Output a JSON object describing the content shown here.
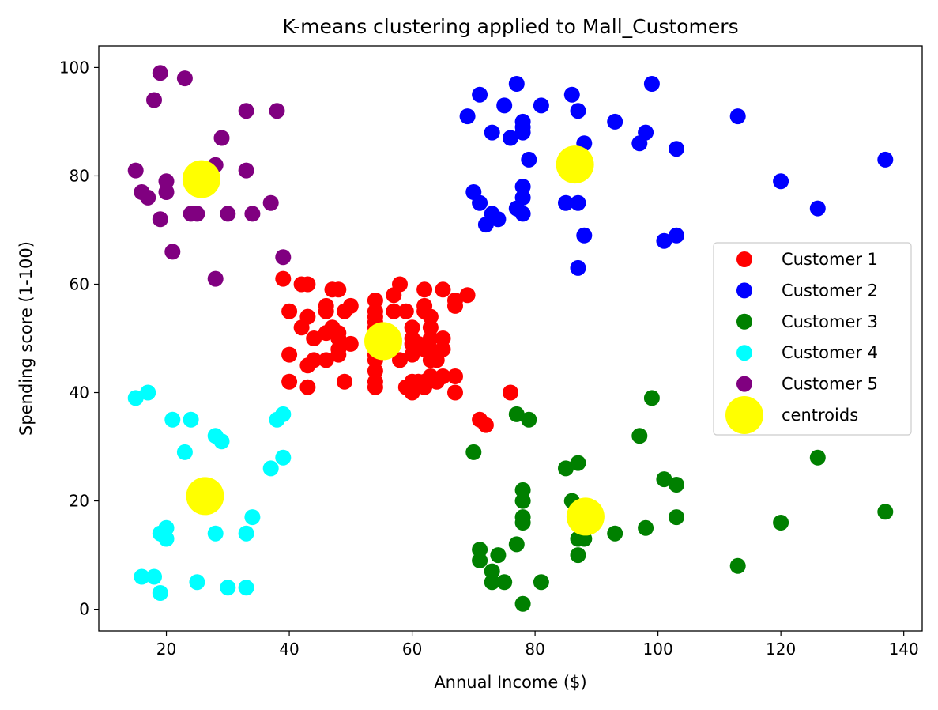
{
  "chart_data": {
    "type": "scatter",
    "title": "K-means clustering applied to Mall_Customers",
    "xlabel": "Annual Income ($)",
    "ylabel": "Spending score (1-100)",
    "xlim": [
      9,
      143
    ],
    "ylim": [
      -4,
      104
    ],
    "xticks": [
      20,
      40,
      60,
      80,
      100,
      120,
      140
    ],
    "yticks": [
      0,
      20,
      40,
      60,
      80,
      100
    ],
    "grid": false,
    "legend_position": "right",
    "series": [
      {
        "name": "Customer 1",
        "color": "#ff0000",
        "points": [
          [
            39,
            61
          ],
          [
            40,
            55
          ],
          [
            40,
            47
          ],
          [
            40,
            42
          ],
          [
            42,
            52
          ],
          [
            42,
            60
          ],
          [
            43,
            60
          ],
          [
            43,
            54
          ],
          [
            43,
            45
          ],
          [
            43,
            41
          ],
          [
            44,
            50
          ],
          [
            44,
            46
          ],
          [
            46,
            51
          ],
          [
            46,
            46
          ],
          [
            46,
            56
          ],
          [
            46,
            55
          ],
          [
            47,
            52
          ],
          [
            47,
            59
          ],
          [
            48,
            51
          ],
          [
            48,
            59
          ],
          [
            48,
            50
          ],
          [
            48,
            48
          ],
          [
            48,
            47
          ],
          [
            49,
            55
          ],
          [
            49,
            42
          ],
          [
            50,
            49
          ],
          [
            50,
            56
          ],
          [
            54,
            47
          ],
          [
            54,
            54
          ],
          [
            54,
            53
          ],
          [
            54,
            48
          ],
          [
            54,
            52
          ],
          [
            54,
            42
          ],
          [
            54,
            51
          ],
          [
            54,
            55
          ],
          [
            54,
            41
          ],
          [
            54,
            44
          ],
          [
            54,
            57
          ],
          [
            54,
            46
          ],
          [
            57,
            58
          ],
          [
            57,
            55
          ],
          [
            58,
            60
          ],
          [
            58,
            46
          ],
          [
            59,
            55
          ],
          [
            59,
            41
          ],
          [
            60,
            49
          ],
          [
            60,
            40
          ],
          [
            60,
            42
          ],
          [
            60,
            52
          ],
          [
            60,
            47
          ],
          [
            60,
            50
          ],
          [
            61,
            42
          ],
          [
            61,
            49
          ],
          [
            62,
            41
          ],
          [
            62,
            48
          ],
          [
            62,
            59
          ],
          [
            62,
            55
          ],
          [
            62,
            56
          ],
          [
            62,
            42
          ],
          [
            63,
            50
          ],
          [
            63,
            46
          ],
          [
            63,
            43
          ],
          [
            63,
            48
          ],
          [
            63,
            52
          ],
          [
            63,
            54
          ],
          [
            64,
            42
          ],
          [
            64,
            46
          ],
          [
            65,
            48
          ],
          [
            65,
            50
          ],
          [
            65,
            43
          ],
          [
            65,
            59
          ],
          [
            67,
            43
          ],
          [
            67,
            57
          ],
          [
            67,
            56
          ],
          [
            67,
            40
          ],
          [
            69,
            58
          ],
          [
            71,
            35
          ],
          [
            72,
            34
          ],
          [
            76,
            40
          ]
        ]
      },
      {
        "name": "Customer 2",
        "color": "#0000ff",
        "points": [
          [
            69,
            91
          ],
          [
            70,
            77
          ],
          [
            71,
            95
          ],
          [
            71,
            75
          ],
          [
            72,
            71
          ],
          [
            73,
            88
          ],
          [
            73,
            73
          ],
          [
            74,
            72
          ],
          [
            75,
            93
          ],
          [
            76,
            87
          ],
          [
            77,
            97
          ],
          [
            77,
            74
          ],
          [
            78,
            90
          ],
          [
            78,
            88
          ],
          [
            78,
            76
          ],
          [
            78,
            89
          ],
          [
            78,
            78
          ],
          [
            78,
            73
          ],
          [
            79,
            83
          ],
          [
            81,
            93
          ],
          [
            85,
            75
          ],
          [
            86,
            95
          ],
          [
            87,
            92
          ],
          [
            87,
            63
          ],
          [
            87,
            75
          ],
          [
            88,
            86
          ],
          [
            88,
            69
          ],
          [
            93,
            90
          ],
          [
            97,
            86
          ],
          [
            98,
            88
          ],
          [
            99,
            97
          ],
          [
            101,
            68
          ],
          [
            103,
            85
          ],
          [
            103,
            69
          ],
          [
            113,
            91
          ],
          [
            120,
            79
          ],
          [
            126,
            74
          ],
          [
            137,
            83
          ]
        ]
      },
      {
        "name": "Customer 3",
        "color": "#008000",
        "points": [
          [
            70,
            29
          ],
          [
            71,
            11
          ],
          [
            71,
            9
          ],
          [
            73,
            5
          ],
          [
            73,
            7
          ],
          [
            74,
            10
          ],
          [
            75,
            5
          ],
          [
            77,
            12
          ],
          [
            77,
            36
          ],
          [
            78,
            22
          ],
          [
            78,
            17
          ],
          [
            78,
            20
          ],
          [
            78,
            16
          ],
          [
            78,
            1
          ],
          [
            79,
            35
          ],
          [
            81,
            5
          ],
          [
            85,
            26
          ],
          [
            86,
            20
          ],
          [
            87,
            27
          ],
          [
            87,
            13
          ],
          [
            87,
            10
          ],
          [
            88,
            13
          ],
          [
            88,
            15
          ],
          [
            93,
            14
          ],
          [
            97,
            32
          ],
          [
            98,
            15
          ],
          [
            99,
            39
          ],
          [
            101,
            24
          ],
          [
            103,
            17
          ],
          [
            103,
            23
          ],
          [
            113,
            8
          ],
          [
            120,
            16
          ],
          [
            126,
            28
          ],
          [
            137,
            18
          ]
        ]
      },
      {
        "name": "Customer 4",
        "color": "#00ffff",
        "points": [
          [
            15,
            39
          ],
          [
            16,
            6
          ],
          [
            17,
            40
          ],
          [
            18,
            6
          ],
          [
            19,
            3
          ],
          [
            19,
            14
          ],
          [
            20,
            15
          ],
          [
            20,
            13
          ],
          [
            21,
            35
          ],
          [
            23,
            29
          ],
          [
            24,
            35
          ],
          [
            25,
            5
          ],
          [
            28,
            14
          ],
          [
            28,
            32
          ],
          [
            29,
            31
          ],
          [
            30,
            4
          ],
          [
            33,
            4
          ],
          [
            33,
            14
          ],
          [
            34,
            17
          ],
          [
            37,
            26
          ],
          [
            38,
            35
          ],
          [
            39,
            36
          ],
          [
            39,
            28
          ]
        ]
      },
      {
        "name": "Customer 5",
        "color": "#800080",
        "points": [
          [
            15,
            81
          ],
          [
            16,
            77
          ],
          [
            17,
            76
          ],
          [
            18,
            94
          ],
          [
            19,
            72
          ],
          [
            19,
            99
          ],
          [
            20,
            77
          ],
          [
            20,
            79
          ],
          [
            21,
            66
          ],
          [
            23,
            98
          ],
          [
            24,
            73
          ],
          [
            25,
            73
          ],
          [
            28,
            82
          ],
          [
            28,
            61
          ],
          [
            29,
            87
          ],
          [
            30,
            73
          ],
          [
            33,
            92
          ],
          [
            33,
            81
          ],
          [
            34,
            73
          ],
          [
            37,
            75
          ],
          [
            38,
            92
          ],
          [
            39,
            65
          ]
        ]
      }
    ],
    "centroids": {
      "name": "centroids",
      "color": "#ffff00",
      "points": [
        [
          55.3,
          49.5
        ],
        [
          86.5,
          82.1
        ],
        [
          88.2,
          17.1
        ],
        [
          26.3,
          20.9
        ],
        [
          25.7,
          79.4
        ]
      ]
    }
  }
}
